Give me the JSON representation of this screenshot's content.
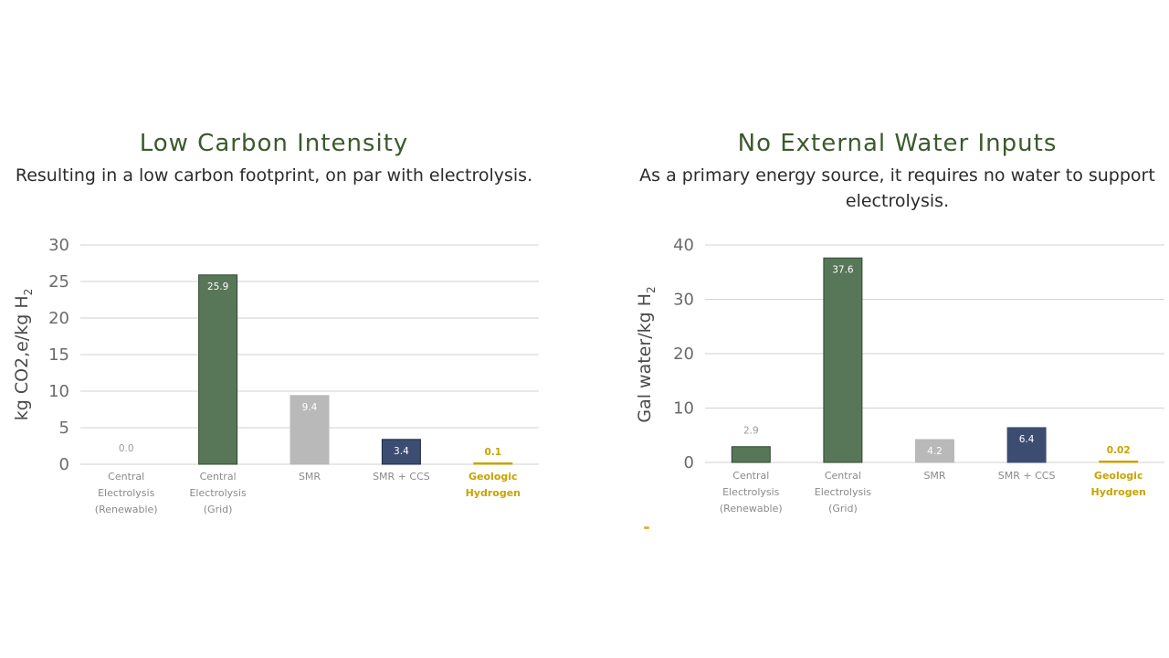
{
  "colors": {
    "renewable": "#587658",
    "grid": "#587658",
    "smr": "#b9b9b9",
    "smr_ccs": "#3d4d72",
    "geologic": "#c7a300",
    "gridline": "#d2d2d2",
    "title": "#3a5a2c"
  },
  "chart_data": [
    {
      "type": "bar",
      "title": "Low Carbon Intensity",
      "subtitle": "Resulting in a low carbon footprint, on par with electrolysis.",
      "ylabel_main": "kg CO2,e/kg H",
      "ylabel_sub": "2",
      "xlabel": "",
      "ylim": [
        0,
        30
      ],
      "yticks": [
        0,
        5,
        10,
        15,
        20,
        25,
        30
      ],
      "grid": true,
      "categories": [
        [
          "Central",
          "Electrolysis",
          "(Renewable)"
        ],
        [
          "Central",
          "Electrolysis",
          "(Grid)"
        ],
        [
          "SMR"
        ],
        [
          "SMR + CCS"
        ],
        [
          "Geologic",
          "Hydrogen"
        ]
      ],
      "values": [
        0.0,
        25.9,
        9.4,
        3.4,
        0.1
      ],
      "value_labels": [
        "0.0",
        "25.9",
        "9.4",
        "3.4",
        "0.1"
      ],
      "bar_colors": [
        "#587658",
        "#587658",
        "#b9b9b9",
        "#3d4d72",
        "#c7a300"
      ],
      "highlight_index": 4
    },
    {
      "type": "bar",
      "title": "No External Water Inputs",
      "subtitle": "As a primary energy source, it requires no water to support electrolysis.",
      "ylabel_main": "Gal water/kg H",
      "ylabel_sub": "2",
      "xlabel": "",
      "ylim": [
        0,
        40
      ],
      "yticks": [
        0,
        10,
        20,
        30,
        40
      ],
      "grid": true,
      "categories": [
        [
          "Central",
          "Electrolysis",
          "(Renewable)"
        ],
        [
          "Central",
          "Electrolysis",
          "(Grid)"
        ],
        [
          "SMR"
        ],
        [
          "SMR + CCS"
        ],
        [
          "Geologic",
          "Hydrogen"
        ]
      ],
      "values": [
        2.9,
        37.6,
        4.2,
        6.4,
        0.02
      ],
      "value_labels": [
        "2.9",
        "37.6",
        "4.2",
        "6.4",
        "0.02"
      ],
      "bar_colors": [
        "#587658",
        "#587658",
        "#b9b9b9",
        "#3d4d72",
        "#c7a300"
      ],
      "highlight_index": 4
    }
  ]
}
